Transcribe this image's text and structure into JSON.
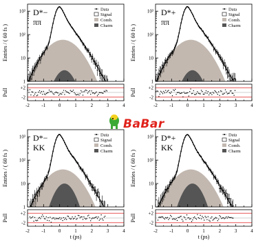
{
  "logo": {
    "text": "BaBar",
    "color": "#e0221b"
  },
  "colors": {
    "signal": "#ffffff",
    "combinatorial": "#c2b8b0",
    "charm": "#555555",
    "pull_band": "#e63c3c"
  },
  "chart_data": [
    {
      "type": "line",
      "panel": "top-left",
      "decay_label": "D*−",
      "decay_sub": "ππ",
      "ylabel": "Entries / ( 60 fs )",
      "xlabel": "",
      "pull_label": "Pull",
      "xlim": [
        -2,
        4
      ],
      "ylim_log": [
        1,
        2000
      ],
      "yscale": "log",
      "xticks": [
        "-2",
        "-1",
        "0",
        "1",
        "2",
        "3",
        "4"
      ],
      "yticks": [
        "1",
        "10",
        "10²",
        "10³"
      ],
      "pull_ticks": [
        "+2",
        "-2"
      ],
      "legend": [
        "Data",
        "Signal",
        "Comb.",
        "Charm"
      ],
      "peak_total": 1500,
      "peak_comb": 60,
      "peak_charm": 3,
      "tail_slope": 0.82
    },
    {
      "type": "line",
      "panel": "top-right",
      "decay_label": "D*+",
      "decay_sub": "ππ",
      "ylabel": "Entries / ( 60 fs )",
      "xlabel": "",
      "pull_label": "Pull",
      "xlim": [
        -2,
        4
      ],
      "ylim_log": [
        1,
        2000
      ],
      "yscale": "log",
      "xticks": [
        "-2",
        "-1",
        "0",
        "1",
        "2",
        "3",
        "4"
      ],
      "yticks": [
        "1",
        "10",
        "10²",
        "10³"
      ],
      "pull_ticks": [
        "+2",
        "-2"
      ],
      "legend": [
        "Data",
        "Signal",
        "Comb.",
        "Charm"
      ],
      "peak_total": 1500,
      "peak_comb": 60,
      "peak_charm": 3,
      "tail_slope": 0.82
    },
    {
      "type": "line",
      "panel": "bottom-left",
      "decay_label": "D*−",
      "decay_sub": "KK",
      "ylabel": "Entries / ( 60 fs )",
      "xlabel": "t (ps)",
      "pull_label": "Pull",
      "xlim": [
        -2,
        4
      ],
      "ylim_log": [
        1,
        2000
      ],
      "yscale": "log",
      "xticks": [
        "-2",
        "-1",
        "0",
        "1",
        "2",
        "3",
        "4"
      ],
      "yticks": [
        "1",
        "10",
        "10²",
        "10³"
      ],
      "pull_ticks": [
        "+2",
        "-2"
      ],
      "legend": [
        "Data",
        "Signal",
        "Comb.",
        "Charm"
      ],
      "peak_total": 1200,
      "peak_comb": 40,
      "peak_charm": 10,
      "tail_slope": 0.82
    },
    {
      "type": "line",
      "panel": "bottom-right",
      "decay_label": "D*+",
      "decay_sub": "KK",
      "ylabel": "Entries / ( 60 fs )",
      "xlabel": "t (ps)",
      "pull_label": "Pull",
      "xlim": [
        -2,
        4
      ],
      "ylim_log": [
        1,
        2000
      ],
      "yscale": "log",
      "xticks": [
        "-2",
        "-1",
        "0",
        "1",
        "2",
        "3",
        "4"
      ],
      "yticks": [
        "1",
        "10",
        "10²",
        "10³"
      ],
      "pull_ticks": [
        "+2",
        "-2"
      ],
      "legend": [
        "Data",
        "Signal",
        "Comb.",
        "Charm"
      ],
      "peak_total": 1200,
      "peak_comb": 40,
      "peak_charm": 10,
      "tail_slope": 0.82
    }
  ]
}
